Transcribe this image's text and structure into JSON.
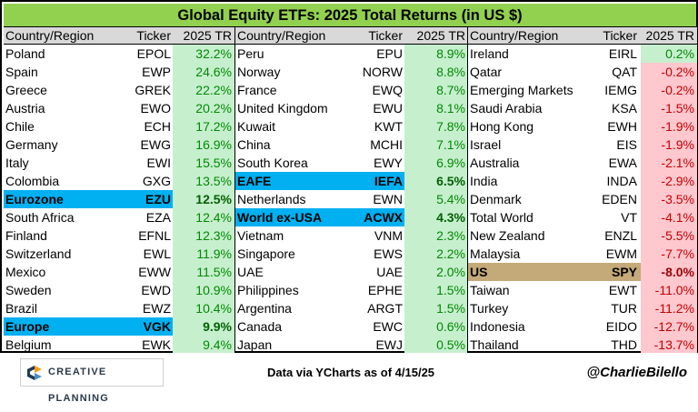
{
  "title": "Global Equity ETFs: 2025 Total Returns (in US $)",
  "headers": {
    "name": "Country/Region",
    "ticker": "Ticker",
    "ret": "2025 TR"
  },
  "columns": [
    {
      "rows": [
        {
          "name": "Poland",
          "ticker": "EPOL",
          "ret": "32.2%"
        },
        {
          "name": "Spain",
          "ticker": "EWP",
          "ret": "24.6%"
        },
        {
          "name": "Greece",
          "ticker": "GREK",
          "ret": "22.2%"
        },
        {
          "name": "Austria",
          "ticker": "EWO",
          "ret": "20.2%"
        },
        {
          "name": "Chile",
          "ticker": "ECH",
          "ret": "17.2%"
        },
        {
          "name": "Germany",
          "ticker": "EWG",
          "ret": "16.9%"
        },
        {
          "name": "Italy",
          "ticker": "EWI",
          "ret": "15.5%"
        },
        {
          "name": "Colombia",
          "ticker": "GXG",
          "ret": "13.5%"
        },
        {
          "name": "Eurozone",
          "ticker": "EZU",
          "ret": "12.5%",
          "highlight": "blue"
        },
        {
          "name": "South Africa",
          "ticker": "EZA",
          "ret": "12.4%"
        },
        {
          "name": "Finland",
          "ticker": "EFNL",
          "ret": "12.3%"
        },
        {
          "name": "Switzerland",
          "ticker": "EWL",
          "ret": "11.9%"
        },
        {
          "name": "Mexico",
          "ticker": "EWW",
          "ret": "11.5%"
        },
        {
          "name": "Sweden",
          "ticker": "EWD",
          "ret": "10.9%"
        },
        {
          "name": "Brazil",
          "ticker": "EWZ",
          "ret": "10.4%"
        },
        {
          "name": "Europe",
          "ticker": "VGK",
          "ret": "9.9%",
          "highlight": "blue"
        },
        {
          "name": "Belgium",
          "ticker": "EWK",
          "ret": "9.4%"
        }
      ]
    },
    {
      "rows": [
        {
          "name": "Peru",
          "ticker": "EPU",
          "ret": "8.9%"
        },
        {
          "name": "Norway",
          "ticker": "NORW",
          "ret": "8.8%"
        },
        {
          "name": "France",
          "ticker": "EWQ",
          "ret": "8.7%"
        },
        {
          "name": "United Kingdom",
          "ticker": "EWU",
          "ret": "8.1%"
        },
        {
          "name": "Kuwait",
          "ticker": "KWT",
          "ret": "7.8%"
        },
        {
          "name": "China",
          "ticker": "MCHI",
          "ret": "7.1%"
        },
        {
          "name": "South Korea",
          "ticker": "EWY",
          "ret": "6.9%"
        },
        {
          "name": "EAFE",
          "ticker": "IEFA",
          "ret": "6.5%",
          "highlight": "blue"
        },
        {
          "name": "Netherlands",
          "ticker": "EWN",
          "ret": "5.4%"
        },
        {
          "name": "World ex-USA",
          "ticker": "ACWX",
          "ret": "4.3%",
          "highlight": "blue"
        },
        {
          "name": "Vietnam",
          "ticker": "VNM",
          "ret": "2.3%"
        },
        {
          "name": "Singapore",
          "ticker": "EWS",
          "ret": "2.2%"
        },
        {
          "name": "UAE",
          "ticker": "UAE",
          "ret": "2.0%"
        },
        {
          "name": "Philippines",
          "ticker": "EPHE",
          "ret": "1.5%"
        },
        {
          "name": "Argentina",
          "ticker": "ARGT",
          "ret": "1.5%"
        },
        {
          "name": "Canada",
          "ticker": "EWC",
          "ret": "0.6%"
        },
        {
          "name": "Japan",
          "ticker": "EWJ",
          "ret": "0.5%"
        }
      ]
    },
    {
      "rows": [
        {
          "name": "Ireland",
          "ticker": "EIRL",
          "ret": "0.2%"
        },
        {
          "name": "Qatar",
          "ticker": "QAT",
          "ret": "-0.2%"
        },
        {
          "name": "Emerging Markets",
          "ticker": "IEMG",
          "ret": "-0.2%"
        },
        {
          "name": "Saudi Arabia",
          "ticker": "KSA",
          "ret": "-1.5%"
        },
        {
          "name": "Hong Kong",
          "ticker": "EWH",
          "ret": "-1.9%"
        },
        {
          "name": "Israel",
          "ticker": "EIS",
          "ret": "-1.9%"
        },
        {
          "name": "Australia",
          "ticker": "EWA",
          "ret": "-2.1%"
        },
        {
          "name": "India",
          "ticker": "INDA",
          "ret": "-2.9%"
        },
        {
          "name": "Denmark",
          "ticker": "EDEN",
          "ret": "-3.5%"
        },
        {
          "name": "Total World",
          "ticker": "VT",
          "ret": "-4.1%"
        },
        {
          "name": "New Zealand",
          "ticker": "ENZL",
          "ret": "-5.5%"
        },
        {
          "name": "Malaysia",
          "ticker": "EWM",
          "ret": "-7.7%"
        },
        {
          "name": "US",
          "ticker": "SPY",
          "ret": "-8.0%",
          "highlight": "tan"
        },
        {
          "name": "Taiwan",
          "ticker": "EWT",
          "ret": "-11.0%"
        },
        {
          "name": "Turkey",
          "ticker": "TUR",
          "ret": "-11.2%"
        },
        {
          "name": "Indonesia",
          "ticker": "EIDO",
          "ret": "-12.7%"
        },
        {
          "name": "Thailand",
          "ticker": "THD",
          "ret": "-13.7%"
        }
      ]
    }
  ],
  "footer": {
    "logo_text": "CREATIVE PLANNING",
    "logo_icon": "creative-planning-c-logo",
    "source": "Data via YCharts as of 4/15/25",
    "handle": "@CharlieBilello"
  },
  "colors": {
    "title_bg": "#92d050",
    "positive_bg": "#c6efce",
    "negative_bg": "#ffc7ce",
    "highlight_blue": "#00b0f0",
    "highlight_tan": "#c4a979"
  }
}
